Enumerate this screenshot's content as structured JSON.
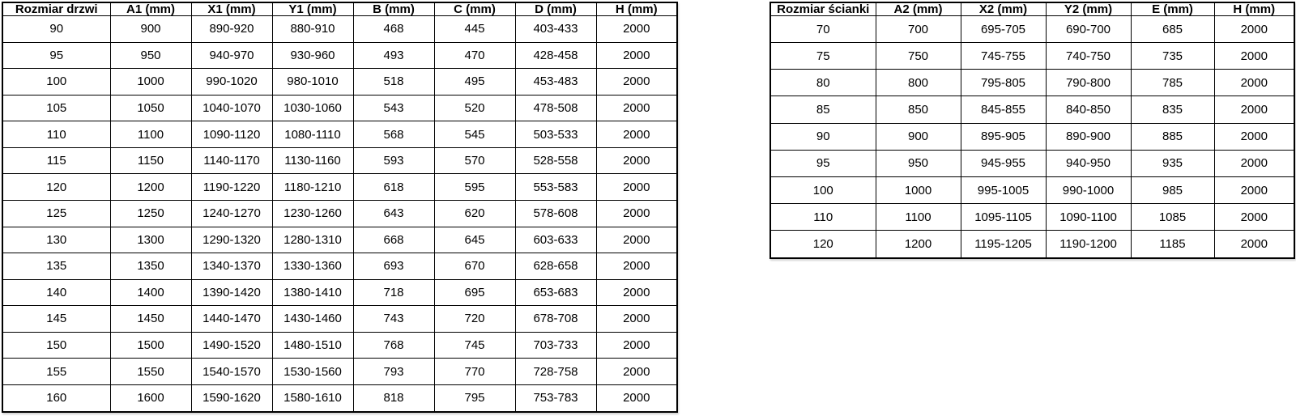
{
  "page": {
    "background_color": "#ffffff",
    "text_color": "#000000",
    "border_color": "#000000"
  },
  "door_table": {
    "headers": [
      "Rozmiar drzwi",
      "A1 (mm)",
      "X1 (mm)",
      "Y1 (mm)",
      "B (mm)",
      "C (mm)",
      "D (mm)",
      "H (mm)"
    ],
    "rows": [
      [
        "90",
        "900",
        "890-920",
        "880-910",
        "468",
        "445",
        "403-433",
        "2000"
      ],
      [
        "95",
        "950",
        "940-970",
        "930-960",
        "493",
        "470",
        "428-458",
        "2000"
      ],
      [
        "100",
        "1000",
        "990-1020",
        "980-1010",
        "518",
        "495",
        "453-483",
        "2000"
      ],
      [
        "105",
        "1050",
        "1040-1070",
        "1030-1060",
        "543",
        "520",
        "478-508",
        "2000"
      ],
      [
        "110",
        "1100",
        "1090-1120",
        "1080-1110",
        "568",
        "545",
        "503-533",
        "2000"
      ],
      [
        "115",
        "1150",
        "1140-1170",
        "1130-1160",
        "593",
        "570",
        "528-558",
        "2000"
      ],
      [
        "120",
        "1200",
        "1190-1220",
        "1180-1210",
        "618",
        "595",
        "553-583",
        "2000"
      ],
      [
        "125",
        "1250",
        "1240-1270",
        "1230-1260",
        "643",
        "620",
        "578-608",
        "2000"
      ],
      [
        "130",
        "1300",
        "1290-1320",
        "1280-1310",
        "668",
        "645",
        "603-633",
        "2000"
      ],
      [
        "135",
        "1350",
        "1340-1370",
        "1330-1360",
        "693",
        "670",
        "628-658",
        "2000"
      ],
      [
        "140",
        "1400",
        "1390-1420",
        "1380-1410",
        "718",
        "695",
        "653-683",
        "2000"
      ],
      [
        "145",
        "1450",
        "1440-1470",
        "1430-1460",
        "743",
        "720",
        "678-708",
        "2000"
      ],
      [
        "150",
        "1500",
        "1490-1520",
        "1480-1510",
        "768",
        "745",
        "703-733",
        "2000"
      ],
      [
        "155",
        "1550",
        "1540-1570",
        "1530-1560",
        "793",
        "770",
        "728-758",
        "2000"
      ],
      [
        "160",
        "1600",
        "1590-1620",
        "1580-1610",
        "818",
        "795",
        "753-783",
        "2000"
      ]
    ]
  },
  "wall_table": {
    "headers": [
      "Rozmiar ścianki",
      "A2 (mm)",
      "X2 (mm)",
      "Y2 (mm)",
      "E (mm)",
      "H (mm)"
    ],
    "rows": [
      [
        "70",
        "700",
        "695-705",
        "690-700",
        "685",
        "2000"
      ],
      [
        "75",
        "750",
        "745-755",
        "740-750",
        "735",
        "2000"
      ],
      [
        "80",
        "800",
        "795-805",
        "790-800",
        "785",
        "2000"
      ],
      [
        "85",
        "850",
        "845-855",
        "840-850",
        "835",
        "2000"
      ],
      [
        "90",
        "900",
        "895-905",
        "890-900",
        "885",
        "2000"
      ],
      [
        "95",
        "950",
        "945-955",
        "940-950",
        "935",
        "2000"
      ],
      [
        "100",
        "1000",
        "995-1005",
        "990-1000",
        "985",
        "2000"
      ],
      [
        "110",
        "1100",
        "1095-1105",
        "1090-1100",
        "1085",
        "2000"
      ],
      [
        "120",
        "1200",
        "1195-1205",
        "1190-1200",
        "1185",
        "2000"
      ]
    ]
  }
}
